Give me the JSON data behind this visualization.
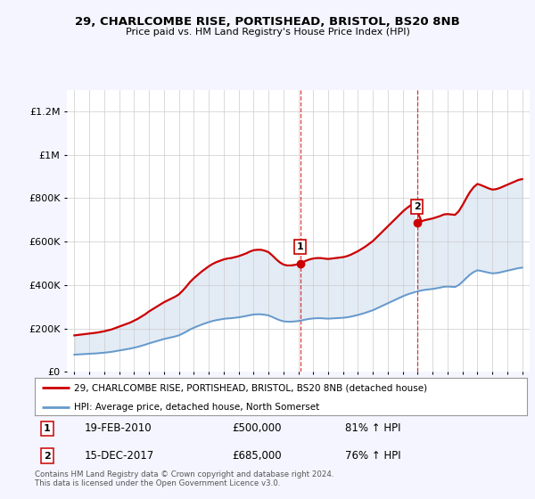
{
  "title": "29, CHARLCOMBE RISE, PORTISHEAD, BRISTOL, BS20 8NB",
  "subtitle": "Price paid vs. HM Land Registry's House Price Index (HPI)",
  "footnote": "Contains HM Land Registry data © Crown copyright and database right 2024.\nThis data is licensed under the Open Government Licence v3.0.",
  "legend_property": "29, CHARLCOMBE RISE, PORTISHEAD, BRISTOL, BS20 8NB (detached house)",
  "legend_hpi": "HPI: Average price, detached house, North Somerset",
  "property_color": "#cc0000",
  "hpi_color": "#6699cc",
  "point1_label": "1",
  "point1_date": "19-FEB-2010",
  "point1_price": "£500,000",
  "point1_info": "81% ↑ HPI",
  "point1_year": 2010.13,
  "point1_value": 500000,
  "point2_label": "2",
  "point2_date": "15-DEC-2017",
  "point2_price": "£685,000",
  "point2_info": "76% ↑ HPI",
  "point2_year": 2017.96,
  "point2_value": 685000,
  "ylim": [
    0,
    1300000
  ],
  "xlim_start": 1994.5,
  "xlim_end": 2025.5,
  "yticks": [
    0,
    200000,
    400000,
    600000,
    800000,
    1000000,
    1200000
  ],
  "ytick_labels": [
    "£0",
    "£200K",
    "£400K",
    "£600K",
    "£800K",
    "£1M",
    "£1.2M"
  ],
  "background_color": "#f5f5ff",
  "plot_bg_color": "#ffffff",
  "grid_color": "#cccccc",
  "hpi_years": [
    1995,
    1995.25,
    1995.5,
    1995.75,
    1996,
    1996.25,
    1996.5,
    1996.75,
    1997,
    1997.25,
    1997.5,
    1997.75,
    1998,
    1998.25,
    1998.5,
    1998.75,
    1999,
    1999.25,
    1999.5,
    1999.75,
    2000,
    2000.25,
    2000.5,
    2000.75,
    2001,
    2001.25,
    2001.5,
    2001.75,
    2002,
    2002.25,
    2002.5,
    2002.75,
    2003,
    2003.25,
    2003.5,
    2003.75,
    2004,
    2004.25,
    2004.5,
    2004.75,
    2005,
    2005.25,
    2005.5,
    2005.75,
    2006,
    2006.25,
    2006.5,
    2006.75,
    2007,
    2007.25,
    2007.5,
    2007.75,
    2008,
    2008.25,
    2008.5,
    2008.75,
    2009,
    2009.25,
    2009.5,
    2009.75,
    2010,
    2010.25,
    2010.5,
    2010.75,
    2011,
    2011.25,
    2011.5,
    2011.75,
    2012,
    2012.25,
    2012.5,
    2012.75,
    2013,
    2013.25,
    2013.5,
    2013.75,
    2014,
    2014.25,
    2014.5,
    2014.75,
    2015,
    2015.25,
    2015.5,
    2015.75,
    2016,
    2016.25,
    2016.5,
    2016.75,
    2017,
    2017.25,
    2017.5,
    2017.75,
    2018,
    2018.25,
    2018.5,
    2018.75,
    2019,
    2019.25,
    2019.5,
    2019.75,
    2020,
    2020.25,
    2020.5,
    2020.75,
    2021,
    2021.25,
    2021.5,
    2021.75,
    2022,
    2022.25,
    2022.5,
    2022.75,
    2023,
    2023.25,
    2023.5,
    2023.75,
    2024,
    2024.25,
    2024.5,
    2024.75,
    2025
  ],
  "hpi_values": [
    79000,
    80000,
    81000,
    82000,
    83000,
    84000,
    85000,
    86500,
    88000,
    90000,
    92000,
    95000,
    98000,
    101000,
    104000,
    107000,
    111000,
    115000,
    120000,
    125000,
    131000,
    136000,
    141000,
    146000,
    151000,
    155000,
    159000,
    163000,
    168000,
    176000,
    185000,
    195000,
    203000,
    210000,
    217000,
    223000,
    229000,
    234000,
    238000,
    241000,
    244000,
    246000,
    247000,
    249000,
    251000,
    254000,
    257000,
    261000,
    264000,
    265000,
    265000,
    263000,
    260000,
    253000,
    245000,
    238000,
    233000,
    231000,
    231000,
    232000,
    234000,
    237000,
    241000,
    244000,
    246000,
    247000,
    247000,
    246000,
    245000,
    246000,
    247000,
    248000,
    249000,
    251000,
    254000,
    258000,
    262000,
    267000,
    272000,
    278000,
    284000,
    292000,
    300000,
    308000,
    316000,
    324000,
    332000,
    340000,
    348000,
    355000,
    361000,
    366000,
    371000,
    375000,
    378000,
    380000,
    382000,
    385000,
    388000,
    392000,
    393000,
    392000,
    391000,
    400000,
    415000,
    432000,
    448000,
    460000,
    468000,
    465000,
    461000,
    457000,
    454000,
    455000,
    458000,
    462000,
    466000,
    470000,
    474000,
    478000,
    480000
  ]
}
